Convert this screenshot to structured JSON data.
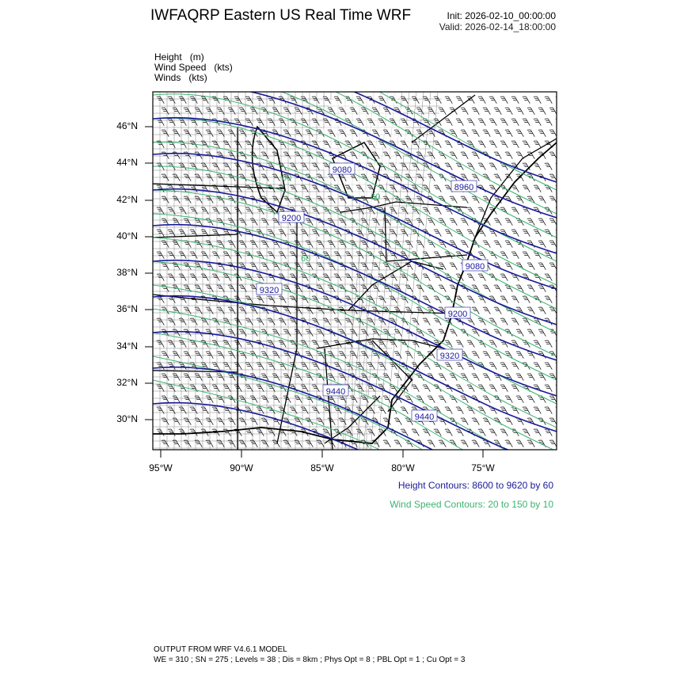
{
  "header": {
    "title": "IWFAQRP Eastern US Real Time WRF",
    "init": "Init: 2026-02-10_00:00:00",
    "valid": "Valid: 2026-02-14_18:00:00"
  },
  "fields": [
    {
      "name": "Height",
      "unit": "(m)"
    },
    {
      "name": "Wind Speed",
      "unit": "(kts)"
    },
    {
      "name": "Winds",
      "unit": "(kts)"
    }
  ],
  "map": {
    "lat_labels": [
      "46°N",
      "44°N",
      "42°N",
      "40°N",
      "38°N",
      "36°N",
      "34°N",
      "32°N",
      "30°N"
    ],
    "lon_labels": [
      "95°W",
      "90°W",
      "85°W",
      "80°W",
      "75°W"
    ],
    "height_contour_labels": [
      "9080",
      "8960",
      "9200",
      "9080",
      "9320",
      "9200",
      "9320",
      "9440",
      "9440"
    ],
    "wind_speed_contour_labels": [
      "60",
      "60",
      "60"
    ],
    "colors": {
      "height": "#1a1a9a",
      "wind_speed": "#3cb371",
      "boundaries": "#000000"
    }
  },
  "legend": {
    "height_contours": "Height Contours: 8600 to 9620 by 60",
    "wind_speed_contours": "Wind Speed Contours: 20 to 150 by 10"
  },
  "footer": {
    "line1": "OUTPUT FROM WRF V4.6.1 MODEL",
    "line2": "WE = 310 ; SN = 275 ; Levels = 38 ; Dis = 8km ; Phys Opt = 8 ; PBL Opt = 1 ; Cu Opt = 3"
  }
}
